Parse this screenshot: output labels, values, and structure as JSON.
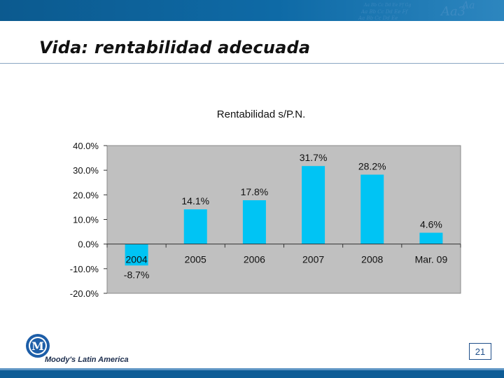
{
  "slide": {
    "title": "Vida: rentabilidad adecuada",
    "page_number": "21",
    "brand": "Moody's Latin America",
    "logo_letter": "M"
  },
  "colors": {
    "bar": "#00c4f4",
    "plot_bg": "#c0c0c0",
    "band": "#0e6aa6"
  },
  "chart_data": {
    "type": "bar",
    "title": "Rentabilidad s/P.N.",
    "categories": [
      "2004",
      "2005",
      "2006",
      "2007",
      "2008",
      "Mar. 09"
    ],
    "values": [
      -8.7,
      14.1,
      17.8,
      31.7,
      28.2,
      4.6
    ],
    "data_labels": [
      "-8.7%",
      "14.1%",
      "17.8%",
      "31.7%",
      "28.2%",
      "4.6%"
    ],
    "ylim": [
      -20,
      40
    ],
    "yticks": [
      40,
      30,
      20,
      10,
      0,
      -10,
      -20
    ],
    "ytick_labels": [
      "40.0%",
      "30.0%",
      "20.0%",
      "10.0%",
      "0.0%",
      "-10.0%",
      "-20.0%"
    ],
    "xlabel": "",
    "ylabel": "",
    "legend": "none",
    "grid": false
  }
}
